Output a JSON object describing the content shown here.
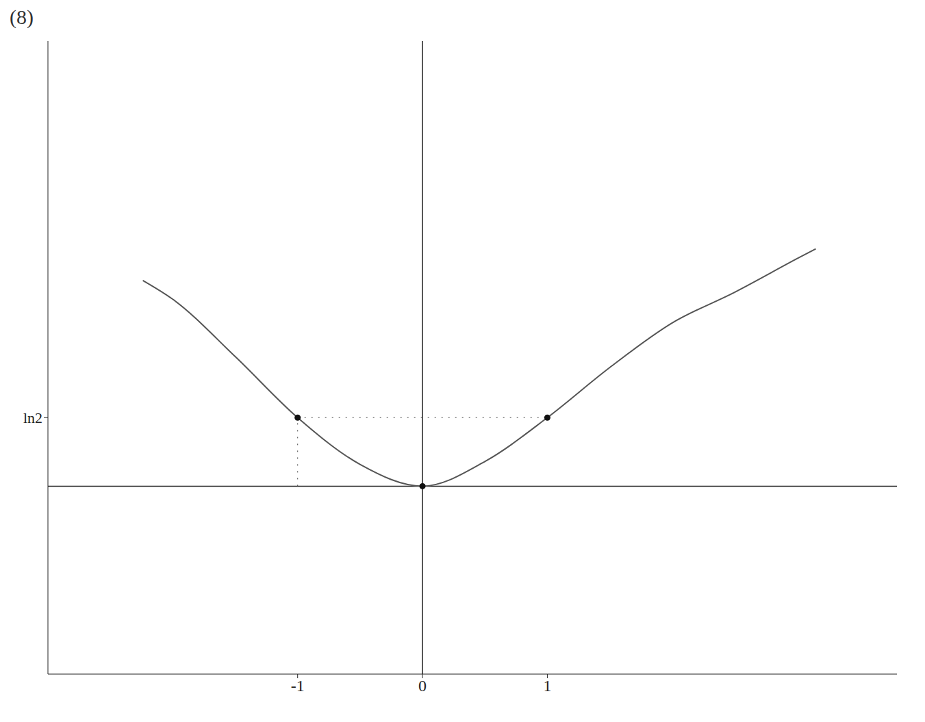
{
  "chart_data": {
    "type": "line",
    "title": "(8)",
    "x": [
      -2.24,
      -2,
      -1.5,
      -1,
      -0.5,
      0,
      0.5,
      1,
      1.5,
      2,
      2.5,
      3,
      3.15
    ],
    "values": [
      2.08,
      1.89,
      1.31,
      0.693,
      0.22,
      0,
      0.25,
      0.693,
      1.2,
      1.65,
      1.96,
      2.3,
      2.4
    ],
    "color": "#555555",
    "xlim": [
      -3,
      3.8
    ],
    "ylim": [
      -1.9,
      4.5
    ],
    "xticks": [
      -1,
      0,
      1
    ],
    "yticks": [
      {
        "value": 0.693,
        "label": "ln2"
      }
    ],
    "points": {
      "x": [
        -1,
        0,
        1
      ],
      "y": [
        0.693,
        0,
        0.693
      ]
    },
    "grid": false
  }
}
